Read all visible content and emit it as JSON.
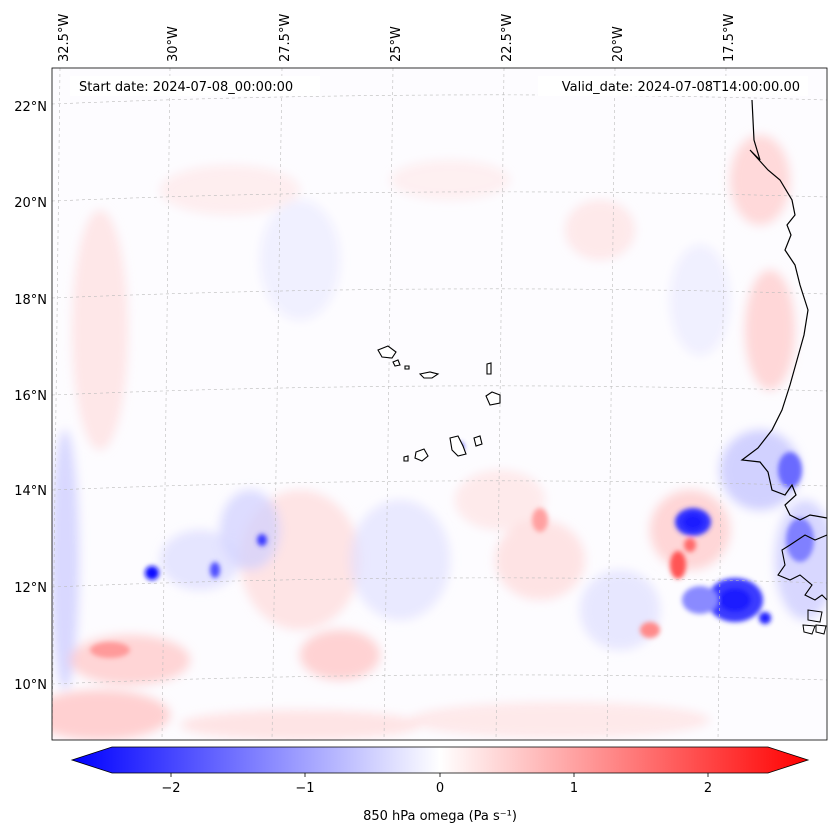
{
  "map": {
    "header": {
      "start_date": "Start date: 2024-07-08_00:00:00",
      "valid_date": "Valid_date: 2024-07-08T14:00:00.00"
    },
    "longitude_labels": [
      "32.5°W",
      "30°W",
      "27.5°W",
      "25°W",
      "22.5°W",
      "20°W",
      "17.5°W"
    ],
    "latitude_labels": [
      "22°N",
      "20°N",
      "18°N",
      "16°N",
      "14°N",
      "12°N",
      "10°N"
    ],
    "grid": true,
    "features": [
      "African coastline",
      "Cape Verde islands",
      "Senegal / Gambia / Guinea-Bissau coast"
    ],
    "colors": {
      "negative": "#0000ff",
      "zero": "#ffffff",
      "positive": "#ff0000",
      "coastline": "#000000",
      "gridline": "#bbbbbb"
    }
  },
  "colorbar": {
    "label": "850 hPa omega (Pa s⁻¹)",
    "tick_labels": [
      "−2",
      "−1",
      "0",
      "1",
      "2"
    ],
    "range": [
      -2.75,
      2.75
    ],
    "colormap": "bwr"
  }
}
